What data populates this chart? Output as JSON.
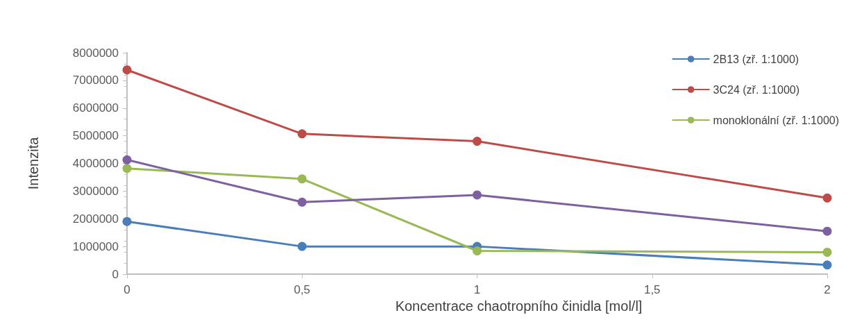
{
  "chart_data": {
    "type": "line",
    "xlabel": "Koncentrace chaotropního činidla [mol/l]",
    "ylabel": "Intenzita",
    "xlim": [
      0,
      2
    ],
    "xticks": [
      0,
      {
        "value": 0.5,
        "label": "0,5"
      },
      1,
      {
        "value": 1.5,
        "label": "1,5"
      },
      2
    ],
    "ylim": [
      0,
      8000000
    ],
    "yticks": [
      0,
      1000000,
      2000000,
      3000000,
      4000000,
      5000000,
      6000000,
      7000000,
      8000000
    ],
    "series": [
      {
        "name": "2B13 (zř. 1:1000)",
        "color": "#4a7ebb",
        "x": [
          0,
          0.5,
          1,
          2
        ],
        "values": [
          1900000,
          1000000,
          1000000,
          330000
        ]
      },
      {
        "name": "3C24 (zř. 1:1000)",
        "color": "#be4b48",
        "x": [
          0,
          0.5,
          1,
          2
        ],
        "values": [
          7380000,
          5070000,
          4800000,
          2750000
        ]
      },
      {
        "name": "monoklonální (zř. 1:1000)",
        "color": "#98b954",
        "x": [
          0,
          0.5,
          1,
          2
        ],
        "values": [
          3820000,
          3440000,
          840000,
          790000
        ]
      },
      {
        "color": "#7d60a0",
        "x": [
          0,
          0.5,
          1,
          2
        ],
        "values": [
          4130000,
          2600000,
          2860000,
          1550000
        ]
      }
    ],
    "grid": false,
    "legend": "top right",
    "marker": "circle",
    "line_style": "solid"
  }
}
